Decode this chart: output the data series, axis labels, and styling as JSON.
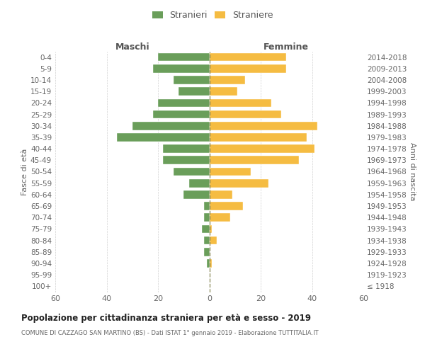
{
  "age_groups": [
    "100+",
    "95-99",
    "90-94",
    "85-89",
    "80-84",
    "75-79",
    "70-74",
    "65-69",
    "60-64",
    "55-59",
    "50-54",
    "45-49",
    "40-44",
    "35-39",
    "30-34",
    "25-29",
    "20-24",
    "15-19",
    "10-14",
    "5-9",
    "0-4"
  ],
  "birth_years": [
    "≤ 1918",
    "1919-1923",
    "1924-1928",
    "1929-1933",
    "1934-1938",
    "1939-1943",
    "1944-1948",
    "1949-1953",
    "1954-1958",
    "1959-1963",
    "1964-1968",
    "1969-1973",
    "1974-1978",
    "1979-1983",
    "1984-1988",
    "1989-1993",
    "1994-1998",
    "1999-2003",
    "2004-2008",
    "2009-2013",
    "2014-2018"
  ],
  "maschi": [
    0,
    0,
    1,
    2,
    2,
    3,
    2,
    2,
    10,
    8,
    14,
    18,
    18,
    36,
    30,
    22,
    20,
    12,
    14,
    22,
    20
  ],
  "femmine": [
    0,
    0,
    1,
    0,
    3,
    1,
    8,
    13,
    9,
    23,
    16,
    35,
    41,
    38,
    42,
    28,
    24,
    11,
    14,
    30,
    30
  ],
  "male_color": "#6a9e5a",
  "female_color": "#f5bc42",
  "grid_color": "#cccccc",
  "center_line_color": "#888855",
  "title": "Popolazione per cittadinanza straniera per età e sesso - 2019",
  "subtitle": "COMUNE DI CAZZAGO SAN MARTINO (BS) - Dati ISTAT 1° gennaio 2019 - Elaborazione TUTTITALIA.IT",
  "ylabel_left": "Fasce di età",
  "ylabel_right": "Anni di nascita",
  "header_left": "Maschi",
  "header_right": "Femmine",
  "legend_male": "Stranieri",
  "legend_female": "Straniere",
  "xlim": 60,
  "background_color": "#ffffff",
  "fig_width": 6.0,
  "fig_height": 5.0,
  "dpi": 100
}
